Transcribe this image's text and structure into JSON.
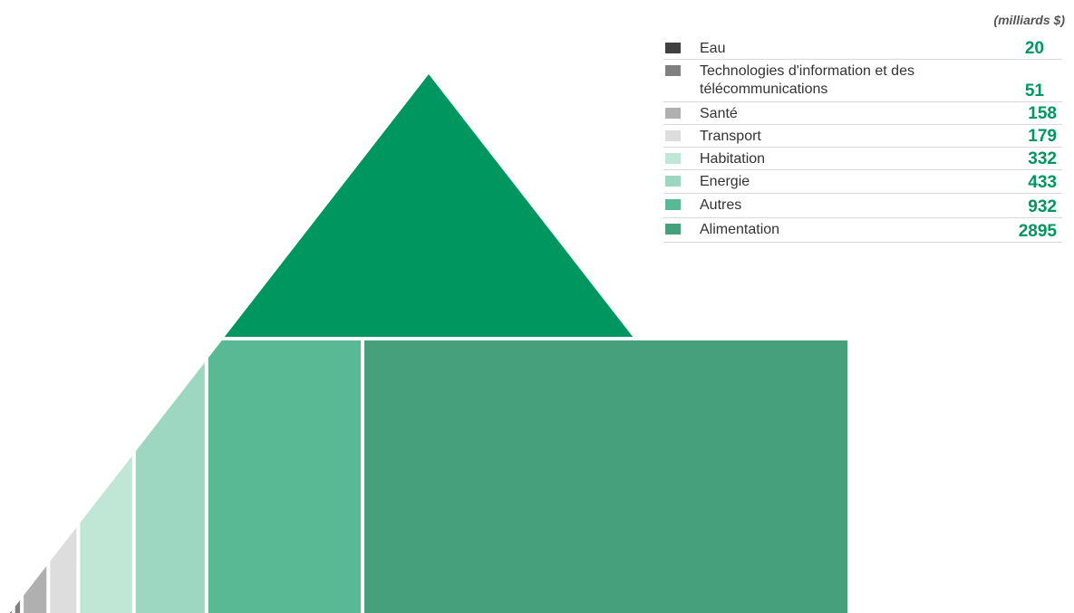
{
  "chart_data": {
    "type": "pyramid",
    "unit_label": "(milliards $)",
    "series": [
      {
        "label": "Eau",
        "label_line2": "",
        "value": 20,
        "color": "#404040"
      },
      {
        "label": "Technologies d'information et des",
        "label_line2": "télécommunications",
        "value": 51,
        "color": "#808080"
      },
      {
        "label": "Santé",
        "label_line2": "",
        "value": 158,
        "color": "#b0b0b0"
      },
      {
        "label": "Transport",
        "label_line2": "",
        "value": 179,
        "color": "#dddddd"
      },
      {
        "label": "Habitation",
        "label_line2": "",
        "value": 332,
        "color": "#c0e6d6"
      },
      {
        "label": "Energie",
        "label_line2": "",
        "value": 433,
        "color": "#9dd6c1"
      },
      {
        "label": "Autres",
        "label_line2": "",
        "value": 932,
        "color": "#58b994"
      },
      {
        "label": "Alimentation",
        "label_line2": "",
        "value": 2895,
        "color": "#47a07c"
      }
    ],
    "apex_color": "#00965f",
    "value_color": "#009660"
  }
}
